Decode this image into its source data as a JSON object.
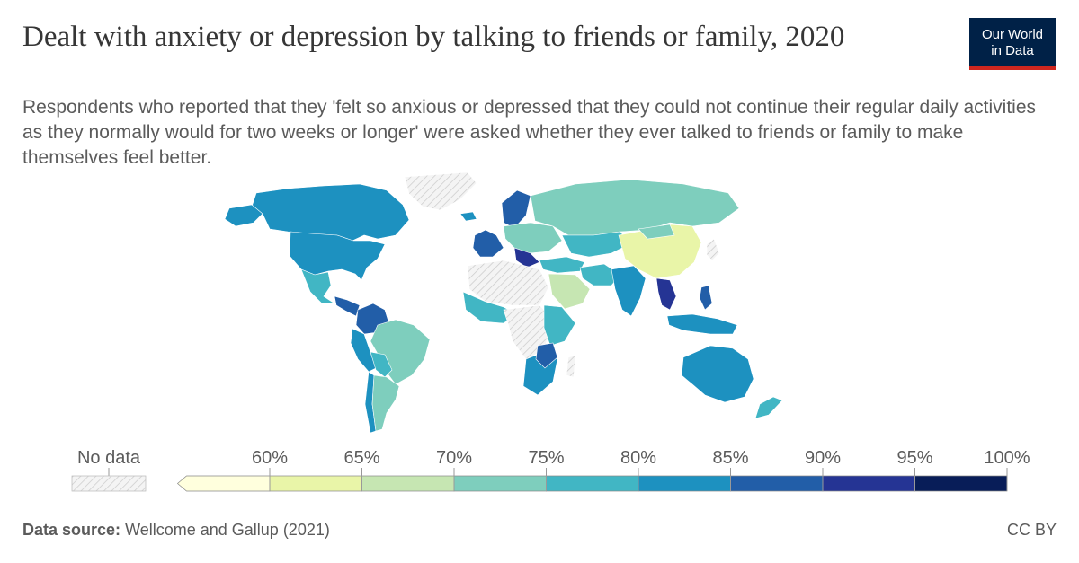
{
  "header": {
    "title": "Dealt with anxiety or depression by talking to friends or family, 2020",
    "subtitle": "Respondents who reported that they 'felt so anxious or depressed that they could not continue their regular daily activities as they normally would for two weeks or longer' were asked whether they ever talked to friends or family to make themselves feel better.",
    "logo_line1": "Our World",
    "logo_line2": "in Data"
  },
  "legend": {
    "no_data_label": "No data",
    "ticks": [
      "60%",
      "65%",
      "70%",
      "75%",
      "80%",
      "85%",
      "90%",
      "95%",
      "100%"
    ],
    "bins": [
      {
        "range": "<60%",
        "color": "#ffffdd"
      },
      {
        "range": "60-65%",
        "color": "#e9f5a8"
      },
      {
        "range": "65-70%",
        "color": "#c6e6b2"
      },
      {
        "range": "70-75%",
        "color": "#7ecebd"
      },
      {
        "range": "75-80%",
        "color": "#41b6c4"
      },
      {
        "range": "80-85%",
        "color": "#1d91c0"
      },
      {
        "range": "85-90%",
        "color": "#225ea8"
      },
      {
        "range": "90-95%",
        "color": "#253494"
      },
      {
        "range": "95-100%",
        "color": "#081d58"
      }
    ]
  },
  "map_regions": [
    {
      "region": "Canada",
      "color": "#1d91c0"
    },
    {
      "region": "Greenland",
      "color": "no-data"
    },
    {
      "region": "United States",
      "color": "#1d91c0"
    },
    {
      "region": "Mexico",
      "color": "#41b6c4"
    },
    {
      "region": "Central America",
      "color": "#225ea8"
    },
    {
      "region": "Brazil",
      "color": "#7ecebd"
    },
    {
      "region": "Argentina",
      "color": "#7ecebd"
    },
    {
      "region": "Colombia / Venezuela",
      "color": "#225ea8"
    },
    {
      "region": "Russia",
      "color": "#7ecebd"
    },
    {
      "region": "China",
      "color": "#e9f5a8"
    },
    {
      "region": "India",
      "color": "#1d91c0"
    },
    {
      "region": "Australia",
      "color": "#1d91c0"
    },
    {
      "region": "Saudi Arabia",
      "color": "#c6e6b2"
    },
    {
      "region": "Scandinavia",
      "color": "#225ea8"
    },
    {
      "region": "Southeast Asia",
      "color": "#253494"
    },
    {
      "region": "North Africa",
      "color": "no-data"
    }
  ],
  "footer": {
    "source_label": "Data source:",
    "source_text": "Wellcome and Gallup (2021)",
    "license": "CC BY"
  }
}
